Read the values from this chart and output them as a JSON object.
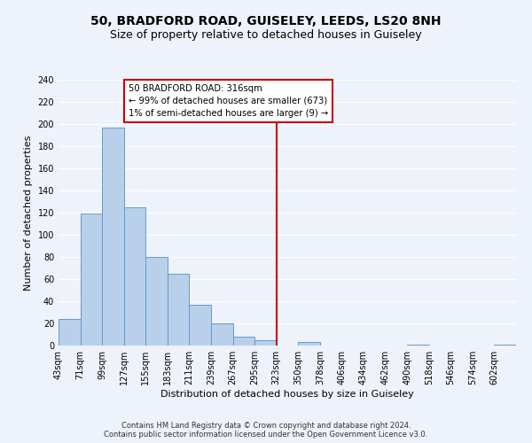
{
  "title": "50, BRADFORD ROAD, GUISELEY, LEEDS, LS20 8NH",
  "subtitle": "Size of property relative to detached houses in Guiseley",
  "xlabel": "Distribution of detached houses by size in Guiseley",
  "ylabel": "Number of detached properties",
  "footer_line1": "Contains HM Land Registry data © Crown copyright and database right 2024.",
  "footer_line2": "Contains public sector information licensed under the Open Government Licence v3.0.",
  "bin_labels": [
    "43sqm",
    "71sqm",
    "99sqm",
    "127sqm",
    "155sqm",
    "183sqm",
    "211sqm",
    "239sqm",
    "267sqm",
    "295sqm",
    "323sqm",
    "350sqm",
    "378sqm",
    "406sqm",
    "434sqm",
    "462sqm",
    "490sqm",
    "518sqm",
    "546sqm",
    "574sqm",
    "602sqm"
  ],
  "bar_values": [
    24,
    119,
    197,
    125,
    80,
    65,
    37,
    20,
    8,
    5,
    0,
    3,
    0,
    0,
    0,
    0,
    1,
    0,
    0,
    0,
    1
  ],
  "bar_color": "#b8d0ea",
  "bar_edge_color": "#6699cc",
  "vline_x_index": 10,
  "vline_label": "323sqm",
  "vline_color": "#cc0000",
  "annotation_line1": "50 BRADFORD ROAD: 316sqm",
  "annotation_line2": "← 99% of detached houses are smaller (673)",
  "annotation_line3": "1% of semi-detached houses are larger (9) →",
  "annotation_box_color": "#ffffff",
  "annotation_box_edge": "#cc0000",
  "ylim": [
    0,
    240
  ],
  "yticks": [
    0,
    20,
    40,
    60,
    80,
    100,
    120,
    140,
    160,
    180,
    200,
    220,
    240
  ],
  "background_color": "#eef2fa",
  "grid_color": "#ffffff",
  "title_fontsize": 10,
  "subtitle_fontsize": 9,
  "axis_label_fontsize": 8,
  "tick_fontsize": 7,
  "footer_fontsize": 6
}
